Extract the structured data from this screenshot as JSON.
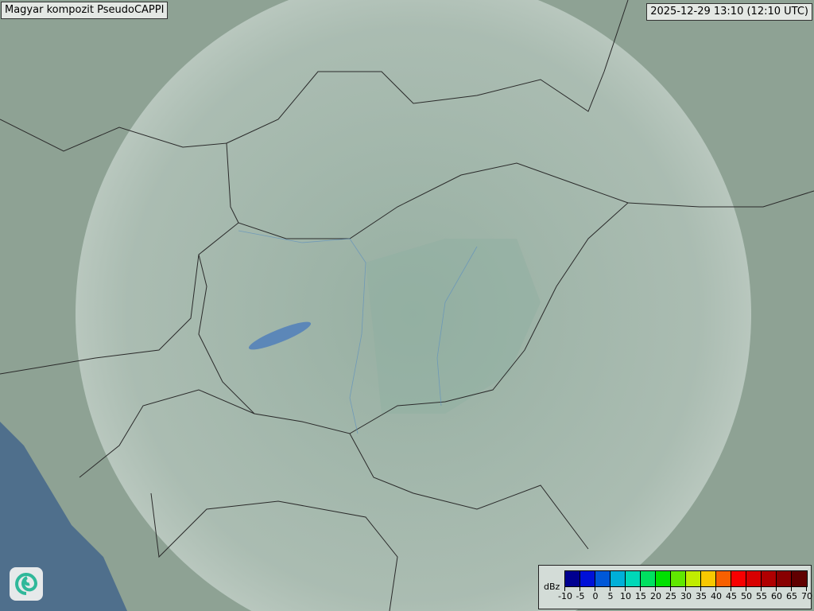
{
  "header": {
    "title": "Magyar kompozit  PseudoCAPPI",
    "timestamp": "2025-12-29 13:10 (12:10 UTC)"
  },
  "legend": {
    "unit": "dBz",
    "ticks": [
      "-10",
      "-5",
      "0",
      "5",
      "10",
      "15",
      "20",
      "25",
      "30",
      "35",
      "40",
      "45",
      "50",
      "55",
      "60",
      "65",
      "70"
    ],
    "colors": [
      "#000090",
      "#0010d8",
      "#0058d8",
      "#00b0d8",
      "#00d8b8",
      "#00e060",
      "#00e000",
      "#60e800",
      "#c0ec00",
      "#f8c800",
      "#f86000",
      "#f80000",
      "#d80000",
      "#b00000",
      "#880000",
      "#600000"
    ]
  },
  "map": {
    "land": "#9fb3a6",
    "sea": "#4f6f8c",
    "radar_coverage": "#c8d6cf",
    "logo": "radar-swirl-logo"
  }
}
